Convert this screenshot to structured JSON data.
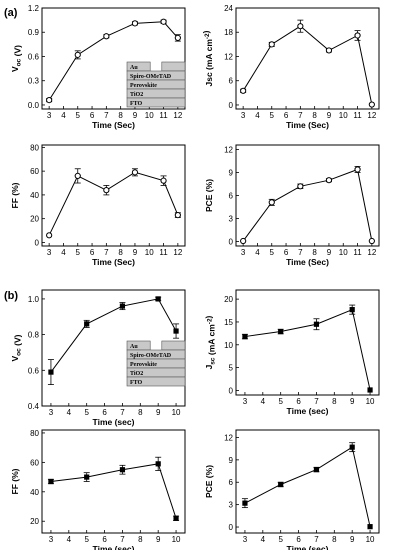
{
  "panel_labels": [
    "(a)",
    "(b)"
  ],
  "device_stack": [
    "Au",
    "Spiro-OMeTAD",
    "Perovskite",
    "TiO2",
    "FTO"
  ],
  "chart_data": [
    {
      "type": "line",
      "marker": "open-circle",
      "x": [
        3,
        5,
        7,
        9,
        11,
        12
      ],
      "values": [
        0.06,
        0.62,
        0.85,
        1.01,
        1.03,
        0.83
      ],
      "errors": [
        0.02,
        0.05,
        0.02,
        0.02,
        0.02,
        0.04
      ],
      "xlabel": "Time (Sec)",
      "ylabel": "V_oc (V)",
      "xlim": [
        2.5,
        12.5
      ],
      "ylim": [
        -0.05,
        1.2
      ],
      "xticks": [
        "3",
        "4",
        "5",
        "6",
        "7",
        "8",
        "9",
        "10",
        "11",
        "12"
      ],
      "yticks": [
        "0.0",
        "0.3",
        "0.6",
        "0.9",
        "1.2"
      ]
    },
    {
      "type": "line",
      "marker": "open-circle",
      "x": [
        3,
        5,
        7,
        9,
        11,
        12
      ],
      "values": [
        3.5,
        15.0,
        19.5,
        13.5,
        17.2,
        0.1
      ],
      "errors": [
        0.4,
        0.5,
        1.5,
        0.4,
        1.2,
        0.2
      ],
      "xlabel": "Time (Sec)",
      "ylabel": "Jsc (mA cm^-2)",
      "xlim": [
        2.5,
        12.5
      ],
      "ylim": [
        -1,
        24
      ],
      "xticks": [
        "3",
        "4",
        "5",
        "6",
        "7",
        "8",
        "9",
        "10",
        "11",
        "12"
      ],
      "yticks": [
        "0",
        "6",
        "12",
        "18",
        "24"
      ]
    },
    {
      "type": "line",
      "marker": "open-circle",
      "x": [
        3,
        5,
        7,
        9,
        11,
        12
      ],
      "values": [
        6,
        56,
        44,
        59,
        52,
        23
      ],
      "errors": [
        1,
        6,
        4,
        3,
        4,
        2
      ],
      "xlabel": "Time (Sec)",
      "ylabel": "FF (%)",
      "xlim": [
        2.5,
        12.5
      ],
      "ylim": [
        -3,
        82
      ],
      "xticks": [
        "3",
        "4",
        "5",
        "6",
        "7",
        "8",
        "9",
        "10",
        "11",
        "12"
      ],
      "yticks": [
        "0",
        "20",
        "40",
        "60",
        "80"
      ]
    },
    {
      "type": "line",
      "marker": "open-circle",
      "x": [
        3,
        5,
        7,
        9,
        11,
        12
      ],
      "values": [
        0.05,
        5.1,
        7.2,
        8.0,
        9.4,
        0.05
      ],
      "errors": [
        0.1,
        0.4,
        0.3,
        0.2,
        0.4,
        0.1
      ],
      "xlabel": "Time (Sec)",
      "ylabel": "PCE (%)",
      "xlim": [
        2.5,
        12.5
      ],
      "ylim": [
        -0.6,
        12.6
      ],
      "xticks": [
        "3",
        "4",
        "5",
        "6",
        "7",
        "8",
        "9",
        "10",
        "11",
        "12"
      ],
      "yticks": [
        "0",
        "3",
        "6",
        "9",
        "12"
      ]
    },
    {
      "type": "line",
      "marker": "filled-square",
      "x": [
        3,
        5,
        7,
        9,
        10
      ],
      "values": [
        0.59,
        0.86,
        0.96,
        1.0,
        0.82
      ],
      "errors": [
        0.07,
        0.02,
        0.02,
        0.01,
        0.04
      ],
      "xlabel": "Time (sec)",
      "ylabel": "V_oc (V)",
      "xlim": [
        2.5,
        10.5
      ],
      "ylim": [
        0.4,
        1.05
      ],
      "xticks": [
        "3",
        "4",
        "5",
        "6",
        "7",
        "8",
        "9",
        "10"
      ],
      "yticks": [
        "0.4",
        "0.6",
        "0.8",
        "1.0"
      ]
    },
    {
      "type": "line",
      "marker": "filled-square",
      "x": [
        3,
        5,
        7,
        9,
        10
      ],
      "values": [
        11.8,
        12.9,
        14.5,
        17.7,
        0.1
      ],
      "errors": [
        0.5,
        0.5,
        1.2,
        1.0,
        0.3
      ],
      "xlabel": "Time (sec)",
      "ylabel": "J_sc (mA cm^-2)",
      "xlim": [
        2.5,
        10.5
      ],
      "ylim": [
        -1,
        22
      ],
      "xticks": [
        "3",
        "4",
        "5",
        "6",
        "7",
        "8",
        "9",
        "10"
      ],
      "yticks": [
        "0",
        "5",
        "10",
        "15",
        "20"
      ]
    },
    {
      "type": "line",
      "marker": "filled-square",
      "x": [
        3,
        5,
        7,
        9,
        10
      ],
      "values": [
        47,
        50,
        55,
        59,
        22
      ],
      "errors": [
        1.5,
        3,
        3,
        4.5,
        1.5
      ],
      "xlabel": "Time (sec)",
      "ylabel": "FF (%)",
      "xlim": [
        2.5,
        10.5
      ],
      "ylim": [
        12,
        82
      ],
      "xticks": [
        "3",
        "4",
        "5",
        "6",
        "7",
        "8",
        "9",
        "10"
      ],
      "yticks": [
        "20",
        "40",
        "60",
        "80"
      ]
    },
    {
      "type": "line",
      "marker": "filled-square",
      "x": [
        3,
        5,
        7,
        9,
        10
      ],
      "values": [
        3.2,
        5.7,
        7.7,
        10.7,
        0.05
      ],
      "errors": [
        0.6,
        0.3,
        0.3,
        0.6,
        0.1
      ],
      "xlabel": "Time (sec)",
      "ylabel": "PCE (%)",
      "xlim": [
        2.5,
        10.5
      ],
      "ylim": [
        -0.8,
        13
      ],
      "xticks": [
        "3",
        "4",
        "5",
        "6",
        "7",
        "8",
        "9",
        "10"
      ],
      "yticks": [
        "0",
        "3",
        "6",
        "9",
        "12"
      ]
    }
  ]
}
